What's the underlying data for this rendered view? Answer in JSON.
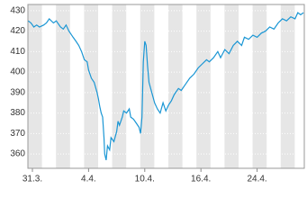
{
  "chart_data": {
    "type": "line",
    "series": [
      {
        "color": "#1a96d4",
        "x": [
          -0.3,
          -0.1,
          0.1,
          0.3,
          0.5,
          0.8,
          1.0,
          1.2,
          1.5,
          1.7,
          2.0,
          2.2,
          2.4,
          2.6,
          2.9,
          3.1,
          3.3,
          3.5,
          3.7,
          3.9,
          4.0,
          4.2,
          4.4,
          4.6,
          4.7,
          4.8,
          4.9,
          5.0,
          5.1,
          5.15,
          5.25,
          5.35,
          5.5,
          5.6,
          5.8,
          6.0,
          6.1,
          6.2,
          6.4,
          6.5,
          6.7,
          6.9,
          7.0,
          7.2,
          7.4,
          7.6,
          7.7,
          7.8,
          7.9,
          8.0,
          8.1,
          8.2,
          8.3,
          8.5,
          8.7,
          8.9,
          9.1,
          9.3,
          9.5,
          9.7,
          9.9,
          10.1,
          10.4,
          10.6,
          10.9,
          11.2,
          11.5,
          11.8,
          12.1,
          12.4,
          12.6,
          12.9,
          13.2,
          13.4,
          13.7,
          14.0,
          14.3,
          14.6,
          14.9,
          15.1,
          15.4,
          15.7,
          16.0,
          16.3,
          16.6,
          16.9,
          17.2,
          17.5,
          17.8,
          18.1,
          18.4,
          18.7,
          18.9,
          19.1,
          19.3
        ],
        "values": [
          425,
          424,
          422,
          423,
          422,
          423,
          424,
          426,
          424,
          425,
          422,
          421,
          423,
          420,
          417,
          415,
          413,
          410,
          406,
          405,
          401,
          397,
          395,
          390,
          387,
          383,
          380,
          378,
          368,
          360,
          357,
          364,
          362,
          368,
          366,
          371,
          376,
          374,
          378,
          381,
          380,
          382,
          378,
          377,
          375,
          373,
          370,
          378,
          405,
          415,
          413,
          403,
          395,
          390,
          385,
          382,
          380,
          385,
          381,
          384,
          386,
          389,
          392,
          391,
          394,
          397,
          399,
          402,
          404,
          406,
          405,
          407,
          410,
          407,
          411,
          409,
          413,
          415,
          413,
          417,
          416,
          418,
          417,
          419,
          420,
          422,
          421,
          424,
          426,
          425,
          427,
          426,
          429,
          428,
          429
        ]
      }
    ],
    "xlim": [
      -0.32,
      19.36
    ],
    "xticks": [
      {
        "value": 0,
        "label": "31.3."
      },
      {
        "value": 4,
        "label": "4.4."
      },
      {
        "value": 8,
        "label": "10.4."
      },
      {
        "value": 12,
        "label": "16.4."
      },
      {
        "value": 16,
        "label": "24.4."
      }
    ],
    "ylim": [
      353,
      433
    ],
    "yticks": [
      360,
      370,
      380,
      390,
      400,
      410,
      420,
      430
    ],
    "grid": true
  }
}
